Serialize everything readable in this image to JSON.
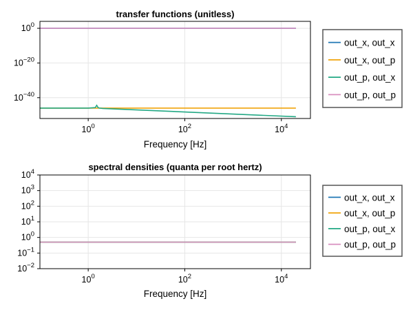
{
  "chart_data": [
    {
      "type": "line",
      "title": "transfer functions (unitless)",
      "xlabel": "Frequency [Hz]",
      "ylabel": "",
      "xscale": "log",
      "yscale": "log",
      "xlim": [
        0.1,
        40000
      ],
      "ylim": [
        1e-52,
        10000.0
      ],
      "xticks": [
        1,
        100,
        10000
      ],
      "xtick_labels": [
        {
          "base": "10",
          "exp": "0"
        },
        {
          "base": "10",
          "exp": "2"
        },
        {
          "base": "10",
          "exp": "4"
        }
      ],
      "yticks": [
        1e-40,
        1e-20,
        1
      ],
      "ytick_labels": [
        {
          "base": "10",
          "exp": "−40"
        },
        {
          "base": "10",
          "exp": "−20"
        },
        {
          "base": "10",
          "exp": "0"
        }
      ],
      "grid": true,
      "legend_position": "right",
      "series": [
        {
          "name": "out_x, out_x",
          "color": "#1f77b4",
          "x": [
            0.1,
            20000
          ],
          "y": [
            1,
            1
          ]
        },
        {
          "name": "out_x, out_p",
          "color": "#f0a30a",
          "x": [
            0.1,
            20000
          ],
          "y": [
            1e-46,
            1e-46
          ]
        },
        {
          "name": "out_p, out_x",
          "color": "#22a884",
          "x": [
            0.1,
            1,
            1.4,
            1.5,
            1.6,
            1.7,
            2.0,
            20000
          ],
          "y": [
            1e-46,
            1e-46,
            2e-46,
            4e-45,
            2e-46,
            1e-46,
            6e-47,
            1e-51
          ]
        },
        {
          "name": "out_p, out_p",
          "color": "#d88fbf",
          "x": [
            0.1,
            20000
          ],
          "y": [
            1,
            1
          ]
        }
      ]
    },
    {
      "type": "line",
      "title": "spectral densities (quanta per root hertz)",
      "xlabel": "Frequency [Hz]",
      "ylabel": "",
      "xscale": "log",
      "yscale": "log",
      "xlim": [
        0.1,
        40000
      ],
      "ylim": [
        0.01,
        10000
      ],
      "xticks": [
        1,
        100,
        10000
      ],
      "xtick_labels": [
        {
          "base": "10",
          "exp": "0"
        },
        {
          "base": "10",
          "exp": "2"
        },
        {
          "base": "10",
          "exp": "4"
        }
      ],
      "yticks": [
        0.01,
        0.1,
        1,
        10,
        100,
        1000,
        10000
      ],
      "ytick_labels": [
        {
          "base": "10",
          "exp": "−2"
        },
        {
          "base": "10",
          "exp": "−1"
        },
        {
          "base": "10",
          "exp": "0"
        },
        {
          "base": "10",
          "exp": "1"
        },
        {
          "base": "10",
          "exp": "2"
        },
        {
          "base": "10",
          "exp": "3"
        },
        {
          "base": "10",
          "exp": "4"
        }
      ],
      "grid": true,
      "legend_position": "right",
      "series": [
        {
          "name": "out_x, out_x",
          "color": "#1f77b4",
          "x": [
            0.1,
            20000
          ],
          "y": [
            0.5,
            0.5
          ]
        },
        {
          "name": "out_x, out_p",
          "color": "#f0a30a",
          "x": [
            0.1,
            20000
          ],
          "y": [
            0.5,
            0.5
          ]
        },
        {
          "name": "out_p, out_x",
          "color": "#22a884",
          "x": [
            0.1,
            20000
          ],
          "y": [
            0.5,
            0.5
          ]
        },
        {
          "name": "out_p, out_p",
          "color": "#d88fbf",
          "x": [
            0.1,
            20000
          ],
          "y": [
            0.5,
            0.5
          ]
        }
      ]
    }
  ]
}
